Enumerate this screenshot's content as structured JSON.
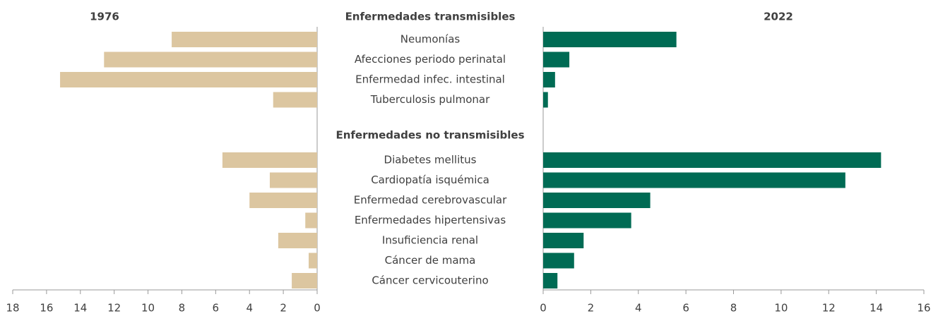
{
  "chart_data": {
    "type": "butterfly-bar",
    "groups": [
      {
        "label": "Enfermedades transmisibles",
        "categories": [
          "Neumonías",
          "Afecciones periodo perinatal",
          "Enfermedad infec. intestinal",
          "Tuberculosis pulmonar"
        ]
      },
      {
        "label": "Enfermedades  no transmisibles",
        "categories": [
          "Diabetes mellitus",
          "Cardiopatía isquémica",
          "Enfermedad cerebrovascular",
          "Enfermedades hipertensivas",
          "Insuficiencia renal",
          "Cáncer de mama",
          "Cáncer cervicouterino"
        ]
      }
    ],
    "series": [
      {
        "name": "1976",
        "color": "#dcc6a0",
        "xlim": [
          0,
          18
        ],
        "xticks": [
          0,
          2,
          4,
          6,
          8,
          10,
          12,
          14,
          16,
          18
        ],
        "values": [
          [
            8.6,
            12.6,
            15.2,
            2.6
          ],
          [
            5.6,
            2.8,
            4.0,
            0.7,
            2.3,
            0.5,
            1.5
          ]
        ]
      },
      {
        "name": "2022",
        "color": "#006b54",
        "xlim": [
          0,
          16
        ],
        "xticks": [
          0,
          2,
          4,
          6,
          8,
          10,
          12,
          14,
          16
        ],
        "values": [
          [
            5.6,
            1.1,
            0.5,
            0.2
          ],
          [
            14.2,
            12.7,
            4.5,
            3.7,
            1.7,
            1.3,
            0.6
          ]
        ]
      }
    ]
  }
}
